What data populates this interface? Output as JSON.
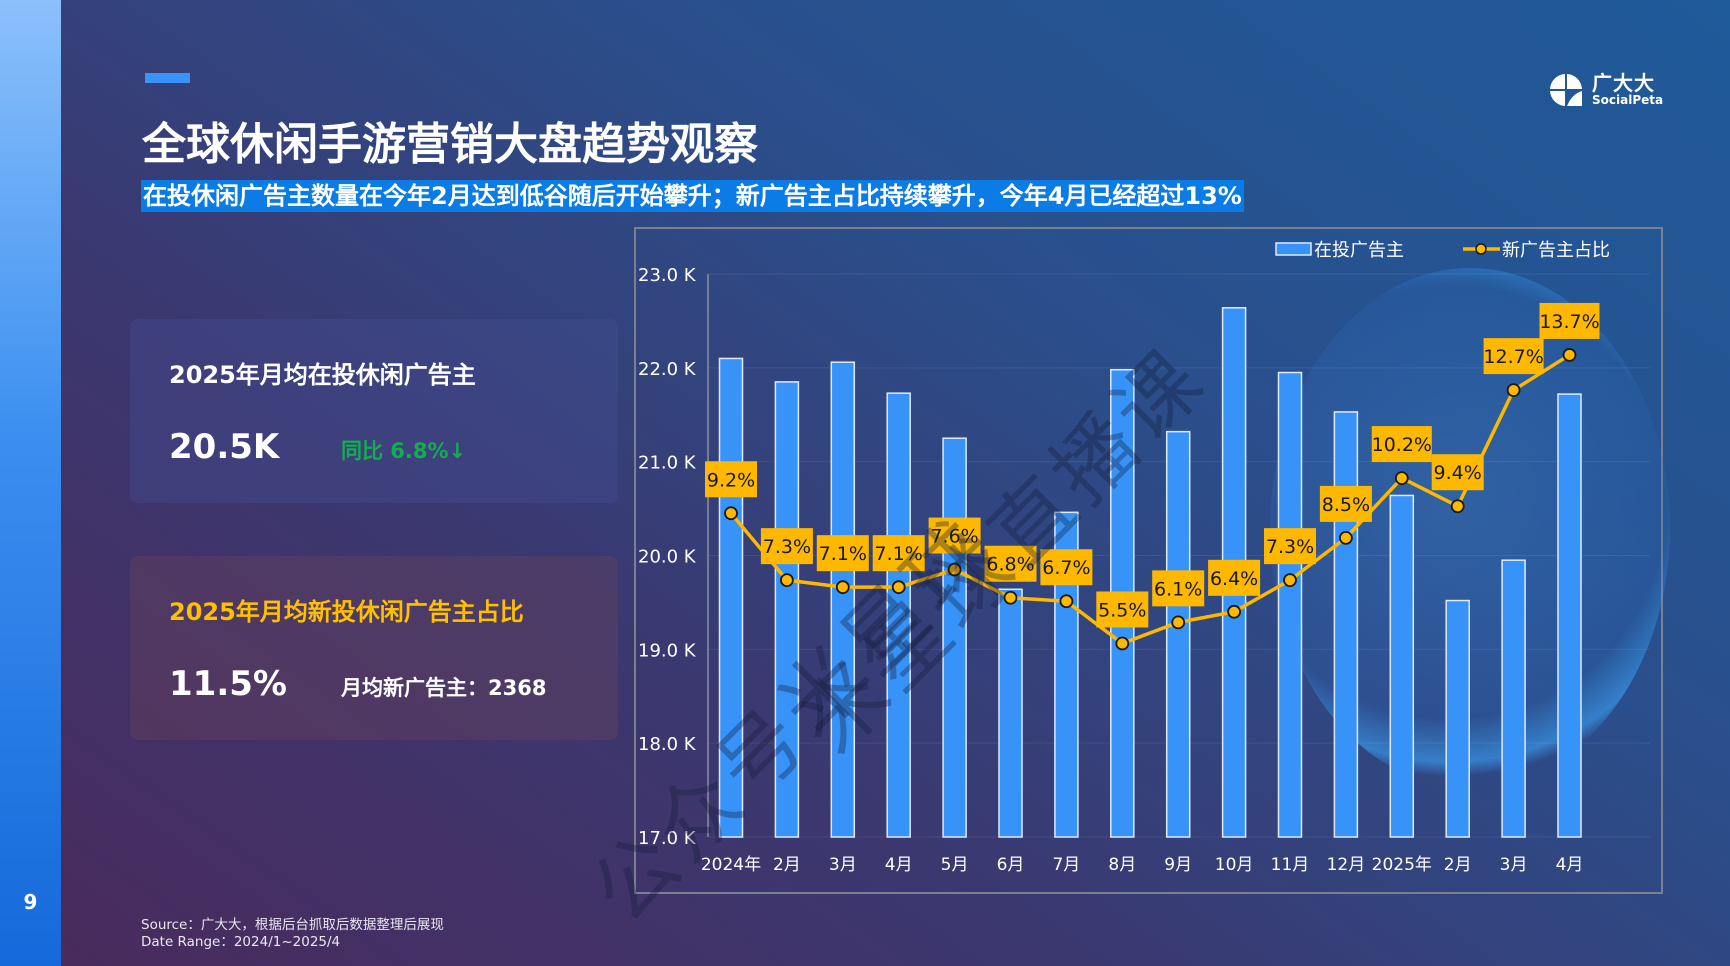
{
  "page": {
    "number": "9",
    "title": "全球休闲手游营销大盘趋势观察",
    "subtitle": "在投休闲广告主数量在今年2月达到低谷随后开始攀升；新广告主占比持续攀升，今年4月已经超过13%"
  },
  "logo": {
    "cn": "广大大",
    "en": "SocialPeta"
  },
  "cards": [
    {
      "title": "2025年月均在投休闲广告主",
      "value": "20.5K",
      "side": "同比 6.8%↓"
    },
    {
      "title": "2025年月均新投休闲广告主占比",
      "value": "11.5%",
      "side": "月均新广告主：2368"
    }
  ],
  "footer": {
    "source": "Source：广大大，根据后台抓取后数据整理后展现",
    "date_range": "Date Range：2024/1~2025/4"
  },
  "watermark": {
    "line1": "米星球直播课",
    "line2": "公众号米星球"
  },
  "colors": {
    "bar": "#3793f7",
    "line": "#ffb800",
    "label_bg": "#ffb800",
    "green": "#12ad4f",
    "accent": "#3a93f8"
  },
  "chart_data": {
    "type": "bar",
    "title": "",
    "categories": [
      "2024年",
      "2月",
      "3月",
      "4月",
      "5月",
      "6月",
      "7月",
      "8月",
      "9月",
      "10月",
      "11月",
      "12月",
      "2025年",
      "2月",
      "3月",
      "4月"
    ],
    "series": [
      {
        "name": "在投广告主",
        "type": "bar",
        "axis": "left",
        "unit": "K",
        "values": [
          22.1,
          21.85,
          22.06,
          21.73,
          21.25,
          19.64,
          20.46,
          21.98,
          21.32,
          22.64,
          21.95,
          21.53,
          20.64,
          19.52,
          19.95,
          21.72
        ]
      },
      {
        "name": "新广告主占比",
        "type": "line",
        "axis": "right",
        "unit": "%",
        "values": [
          9.2,
          7.3,
          7.1,
          7.1,
          7.6,
          6.8,
          6.7,
          5.5,
          6.1,
          6.4,
          7.3,
          8.5,
          10.2,
          9.4,
          12.7,
          13.7
        ],
        "labels": [
          "9.2%",
          "7.3%",
          "7.1%",
          "7.1%",
          "7.6%",
          "6.8%",
          "6.7%",
          "5.5%",
          "6.1%",
          "6.4%",
          "7.3%",
          "8.5%",
          "10.2%",
          "9.4%",
          "12.7%",
          "13.7%"
        ]
      }
    ],
    "y_ticks": [
      "23.0 K",
      "22.0 K",
      "21.0 K",
      "20.0 K",
      "19.0 K",
      "18.0 K",
      "17.0 K"
    ],
    "y_tick_values": [
      23,
      22,
      21,
      20,
      19,
      18,
      17
    ],
    "ylim": [
      17,
      23
    ],
    "y2lim": [
      0,
      16
    ],
    "xlabel": "",
    "ylabel": "",
    "grid": true,
    "legend": {
      "position": "top-right",
      "items": [
        "在投广告主",
        "新广告主占比"
      ]
    }
  }
}
